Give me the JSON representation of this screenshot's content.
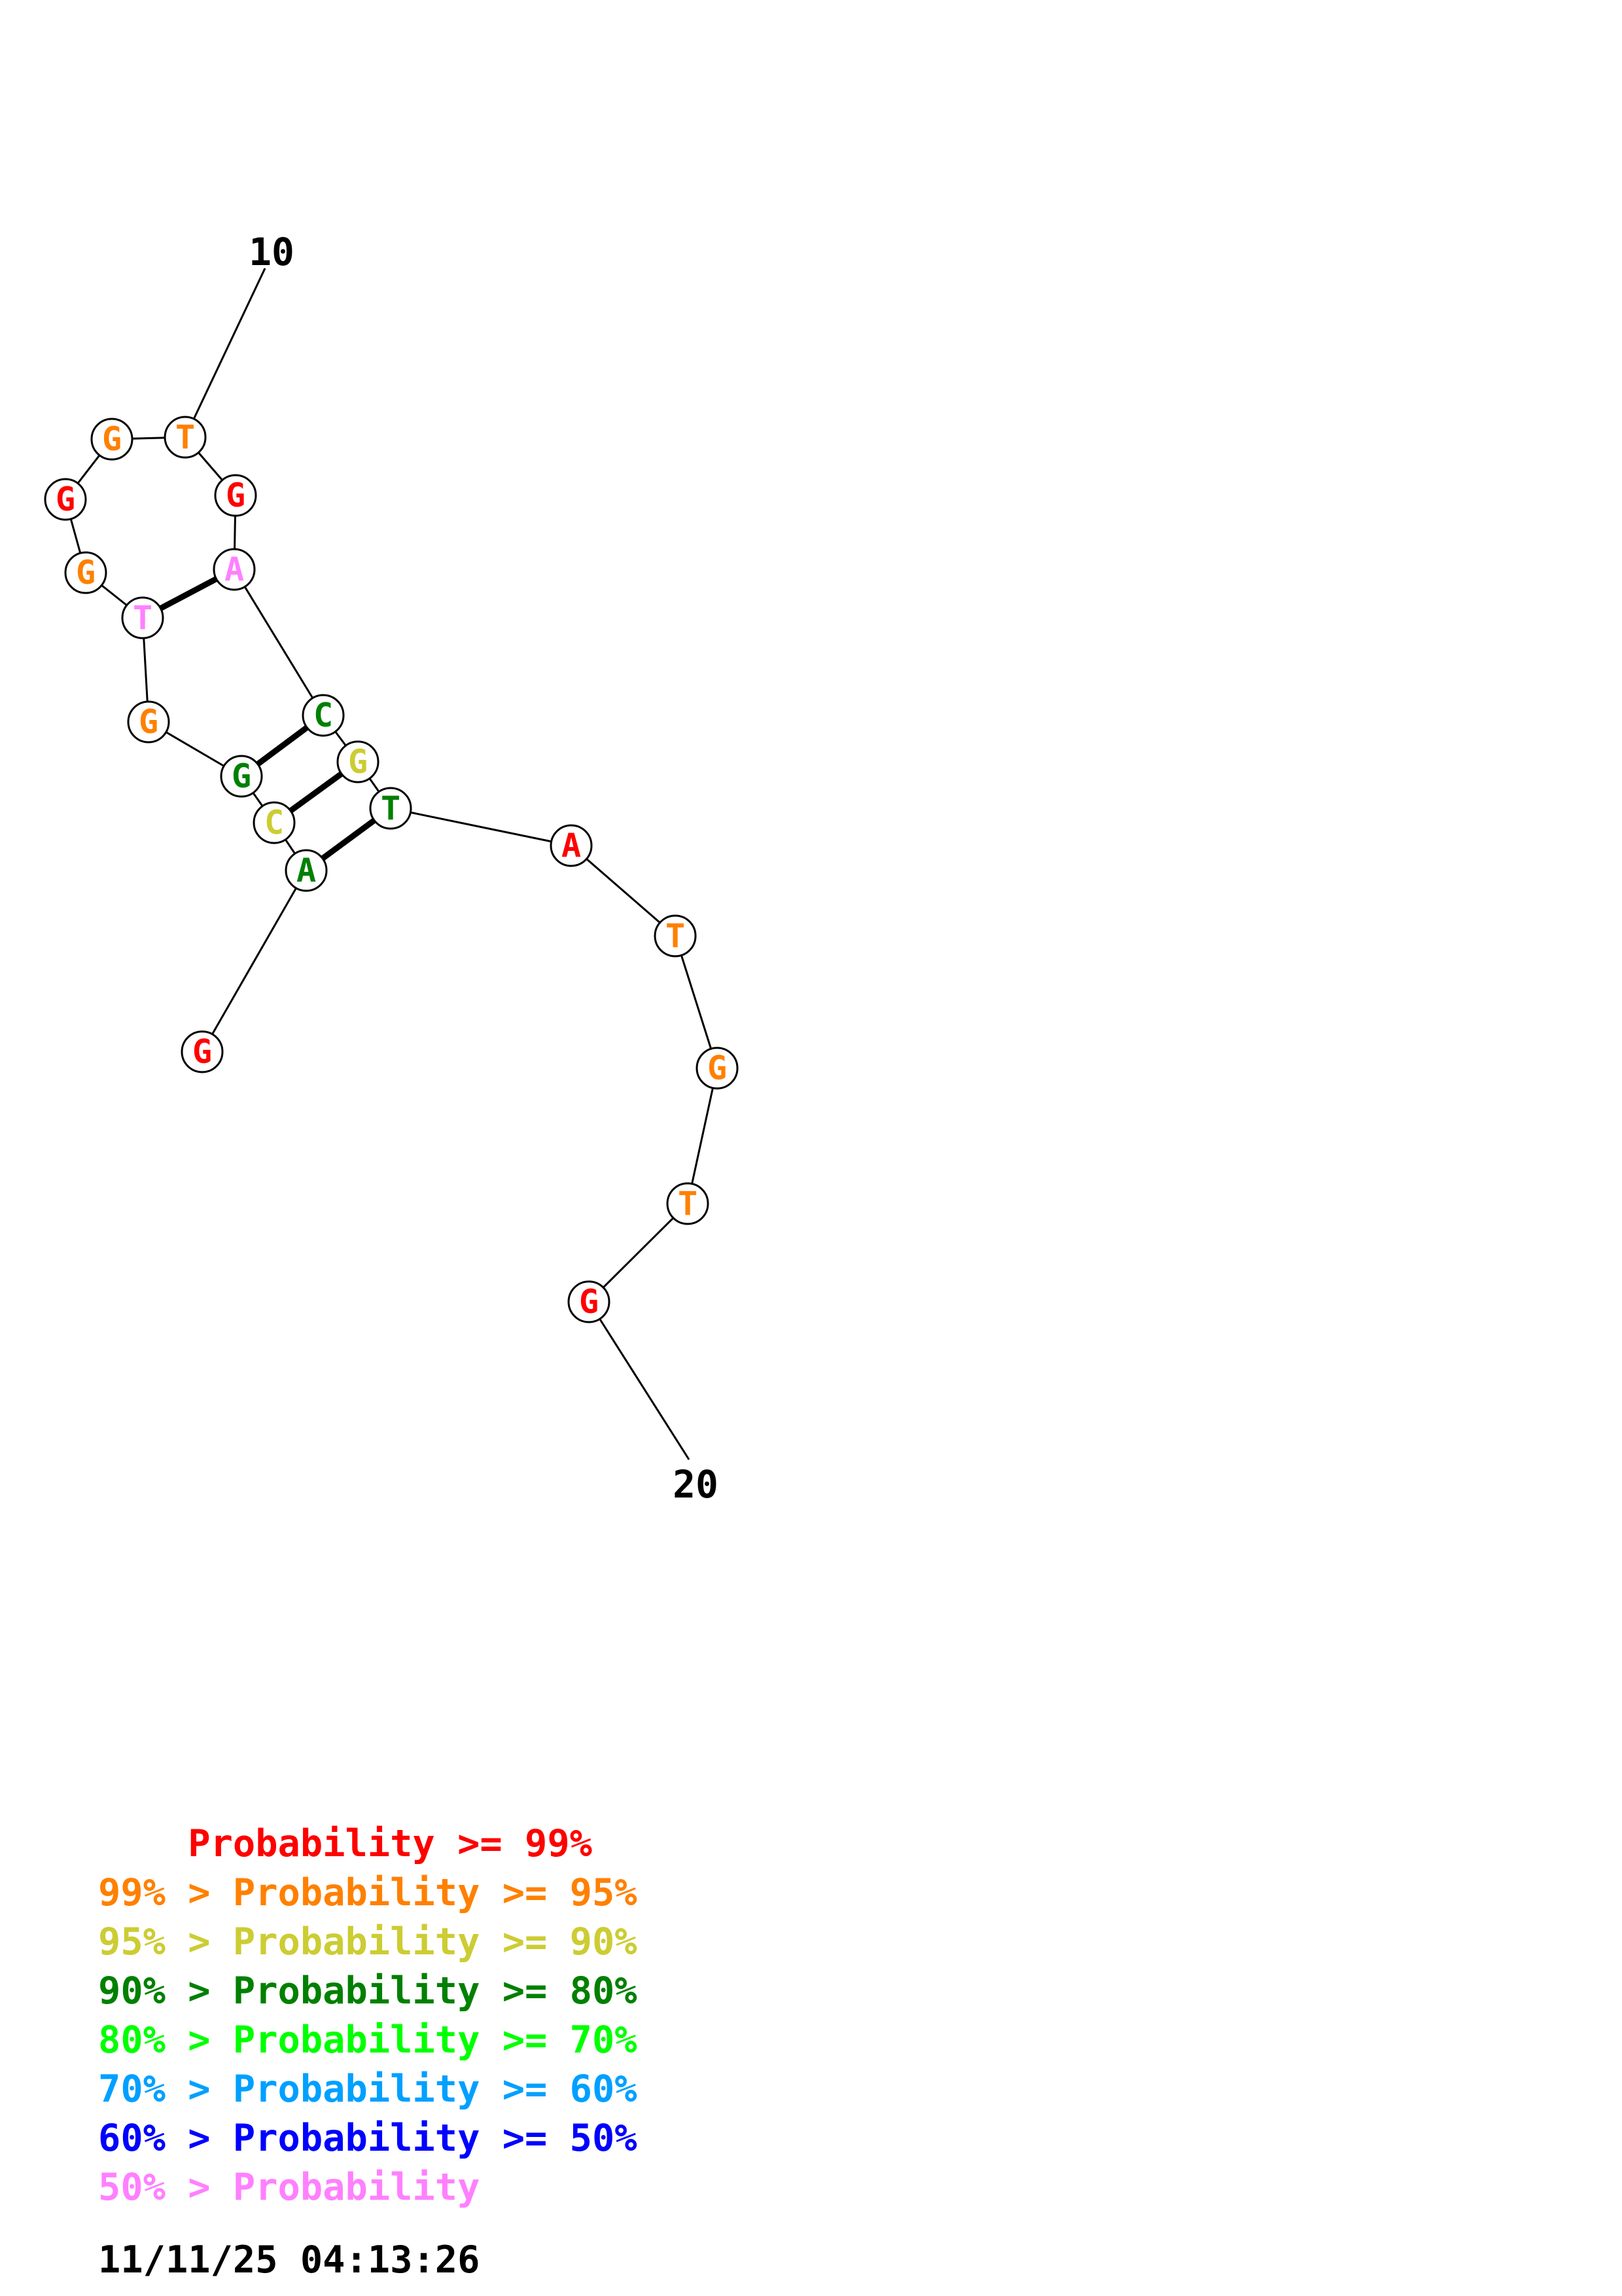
{
  "diagram": {
    "start_label": "10",
    "end_label": "20",
    "bases": [
      {
        "letter": "G",
        "color": "#ff0000"
      },
      {
        "letter": "A",
        "color": "#008000"
      },
      {
        "letter": "C",
        "color": "#cccc33"
      },
      {
        "letter": "G",
        "color": "#008000"
      },
      {
        "letter": "G",
        "color": "#ff8000"
      },
      {
        "letter": "T",
        "color": "#ff80ff"
      },
      {
        "letter": "G",
        "color": "#ff8000"
      },
      {
        "letter": "G",
        "color": "#ff0000"
      },
      {
        "letter": "G",
        "color": "#ff8000"
      },
      {
        "letter": "T",
        "color": "#ff8000"
      },
      {
        "letter": "G",
        "color": "#ff0000"
      },
      {
        "letter": "A",
        "color": "#ff80ff"
      },
      {
        "letter": "C",
        "color": "#008000"
      },
      {
        "letter": "G",
        "color": "#cccc33"
      },
      {
        "letter": "T",
        "color": "#008000"
      },
      {
        "letter": "A",
        "color": "#ff0000"
      },
      {
        "letter": "T",
        "color": "#ff8000"
      },
      {
        "letter": "G",
        "color": "#ff8000"
      },
      {
        "letter": "T",
        "color": "#ff8000"
      },
      {
        "letter": "G",
        "color": "#ff0000"
      }
    ],
    "pairs": [
      [
        2,
        15
      ],
      [
        3,
        14
      ],
      [
        4,
        13
      ],
      [
        6,
        12
      ]
    ]
  },
  "legend": {
    "lines": [
      {
        "text": "    Probability >= 99%",
        "color": "#ff0000"
      },
      {
        "text": "99% > Probability >= 95%",
        "color": "#ff8000"
      },
      {
        "text": "95% > Probability >= 90%",
        "color": "#cccc33"
      },
      {
        "text": "90% > Probability >= 80%",
        "color": "#008000"
      },
      {
        "text": "80% > Probability >= 70%",
        "color": "#00ff00"
      },
      {
        "text": "70% > Probability >= 60%",
        "color": "#00a0ff"
      },
      {
        "text": "60% > Probability >= 50%",
        "color": "#0000ff"
      },
      {
        "text": "50% > Probability",
        "color": "#ff80ff"
      }
    ],
    "timestamp": "11/11/25 04:13:26"
  }
}
